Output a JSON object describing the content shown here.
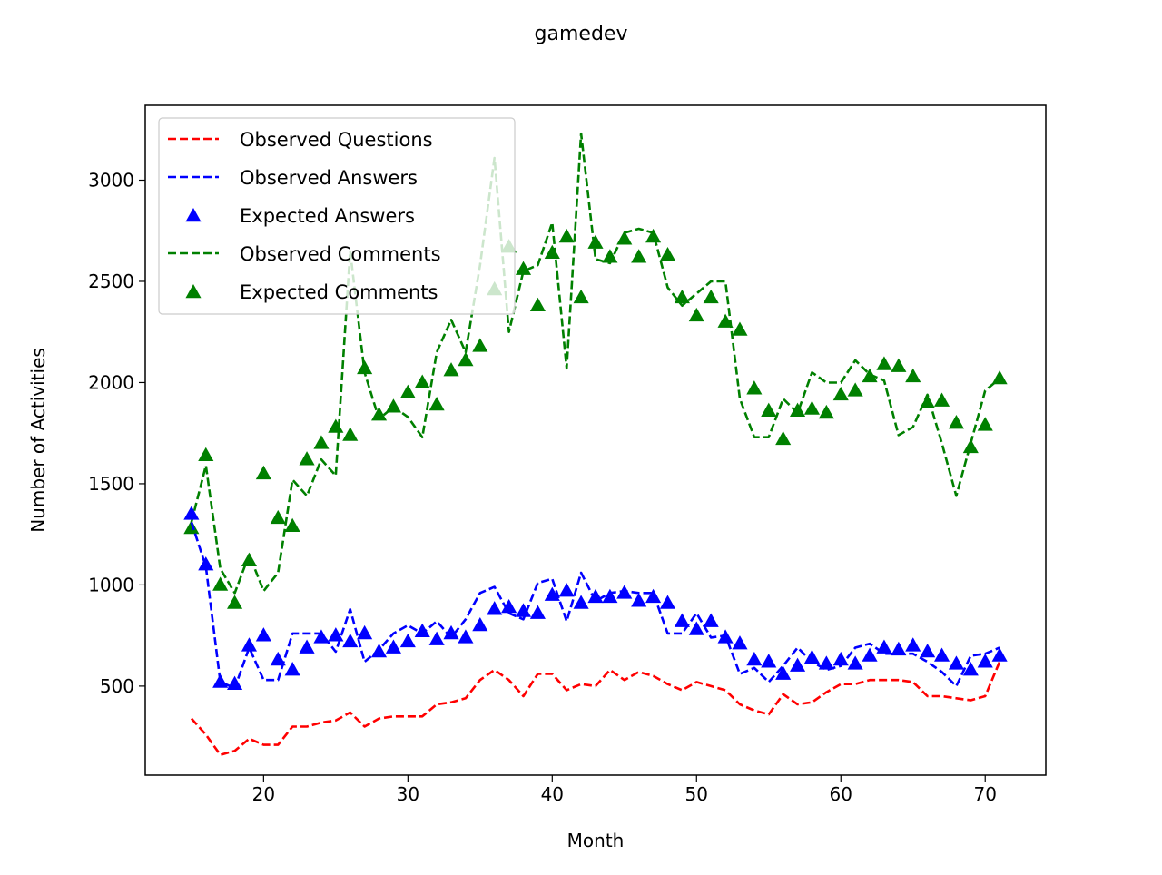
{
  "chart_data": {
    "type": "line",
    "title": "gamedev",
    "xlabel": "Month",
    "ylabel": "Number of Activities",
    "xlim": [
      11.8,
      74.2
    ],
    "ylim": [
      60,
      3370
    ],
    "xticks": [
      20,
      30,
      40,
      50,
      60,
      70
    ],
    "yticks": [
      500,
      1000,
      1500,
      2000,
      2500,
      3000
    ],
    "grid": false,
    "legend_position": "top-left",
    "x": [
      15,
      16,
      17,
      18,
      19,
      20,
      21,
      22,
      23,
      24,
      25,
      26,
      27,
      28,
      29,
      30,
      31,
      32,
      33,
      34,
      35,
      36,
      37,
      38,
      39,
      40,
      41,
      42,
      43,
      44,
      45,
      46,
      47,
      48,
      49,
      50,
      51,
      52,
      53,
      54,
      55,
      56,
      57,
      58,
      59,
      60,
      61,
      62,
      63,
      64,
      65,
      66,
      67,
      68,
      69,
      70,
      71
    ],
    "series": [
      {
        "name": "Observed Questions",
        "style": "dashed-line",
        "color": "#ff0000",
        "values": [
          340,
          260,
          160,
          180,
          240,
          210,
          210,
          300,
          300,
          320,
          330,
          370,
          300,
          340,
          350,
          350,
          350,
          410,
          420,
          440,
          530,
          580,
          530,
          450,
          560,
          560,
          480,
          510,
          500,
          580,
          530,
          570,
          550,
          510,
          480,
          520,
          500,
          480,
          410,
          380,
          360,
          460,
          410,
          420,
          470,
          510,
          510,
          530,
          530,
          530,
          520,
          450,
          450,
          440,
          430,
          450,
          620
        ]
      },
      {
        "name": "Observed Answers",
        "style": "dashed-line",
        "color": "#0000ff",
        "values": [
          1310,
          1090,
          520,
          490,
          690,
          530,
          530,
          760,
          760,
          760,
          670,
          880,
          620,
          680,
          760,
          800,
          760,
          820,
          740,
          830,
          960,
          990,
          860,
          830,
          1010,
          1030,
          820,
          1060,
          920,
          960,
          970,
          960,
          960,
          760,
          760,
          860,
          740,
          750,
          560,
          590,
          520,
          600,
          690,
          620,
          580,
          600,
          690,
          710,
          660,
          660,
          660,
          620,
          570,
          500,
          650,
          660,
          690
        ]
      },
      {
        "name": "Expected Answers",
        "style": "triangle-markers",
        "color": "#0000ff",
        "values": [
          1350,
          1100,
          520,
          510,
          700,
          750,
          630,
          580,
          690,
          740,
          750,
          720,
          760,
          670,
          690,
          720,
          770,
          730,
          760,
          740,
          800,
          880,
          890,
          870,
          860,
          950,
          970,
          910,
          940,
          940,
          960,
          920,
          940,
          910,
          820,
          780,
          820,
          740,
          710,
          630,
          620,
          560,
          600,
          640,
          610,
          630,
          610,
          650,
          690,
          680,
          700,
          670,
          650,
          610,
          580,
          620,
          650
        ]
      },
      {
        "name": "Observed Comments",
        "style": "dashed-line",
        "color": "#008000",
        "values": [
          1310,
          1590,
          1080,
          960,
          1150,
          970,
          1060,
          1520,
          1440,
          1620,
          1540,
          2650,
          2050,
          1820,
          1880,
          1830,
          1730,
          2150,
          2310,
          2150,
          2580,
          3110,
          2250,
          2550,
          2580,
          2790,
          2070,
          3230,
          2610,
          2590,
          2740,
          2760,
          2740,
          2470,
          2380,
          2440,
          2500,
          2500,
          1920,
          1730,
          1730,
          1920,
          1850,
          2050,
          2000,
          2000,
          2110,
          2040,
          2010,
          1740,
          1780,
          1940,
          1700,
          1440,
          1700,
          1960,
          2020
        ]
      },
      {
        "name": "Expected Comments",
        "style": "triangle-markers",
        "color": "#008000",
        "values": [
          1280,
          1640,
          1000,
          910,
          1120,
          1550,
          1330,
          1290,
          1620,
          1700,
          1780,
          1740,
          2070,
          1840,
          1880,
          1950,
          2000,
          1890,
          2060,
          2110,
          2180,
          2460,
          2670,
          2560,
          2380,
          2640,
          2720,
          2420,
          2690,
          2620,
          2710,
          2620,
          2720,
          2630,
          2420,
          2330,
          2420,
          2300,
          2260,
          1970,
          1860,
          1720,
          1860,
          1870,
          1850,
          1940,
          1960,
          2030,
          2090,
          2080,
          2030,
          1900,
          1910,
          1800,
          1680,
          1790,
          2020
        ]
      }
    ]
  }
}
